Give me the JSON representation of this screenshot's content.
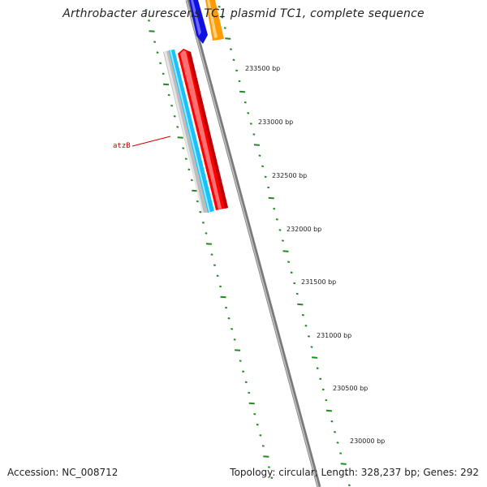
{
  "title": "Arthrobacter aurescens TC1 plasmid TC1, complete sequence",
  "footer": {
    "accession": "Accession: NC_008712",
    "summary": "Topology: circular; Length: 328,237 bp; Genes: 292"
  },
  "scale": {
    "tick_labels": [
      "233500 bp",
      "233000 bp",
      "232500 bp",
      "232000 bp",
      "231500 bp",
      "231000 bp",
      "230500 bp",
      "230000 bp"
    ]
  },
  "genes": [
    {
      "label": "atzB",
      "color": "#ff0000"
    }
  ],
  "colors": {
    "backbone": "#888888",
    "ticks": "#228b22",
    "gene_label": "#cc0000",
    "cds_red": "#ff0000",
    "cds_cyan": "#1ec8ff",
    "cds_gray": "#bdbdbd",
    "cds_blue": "#1010e0",
    "cds_orange": "#ff9900"
  }
}
